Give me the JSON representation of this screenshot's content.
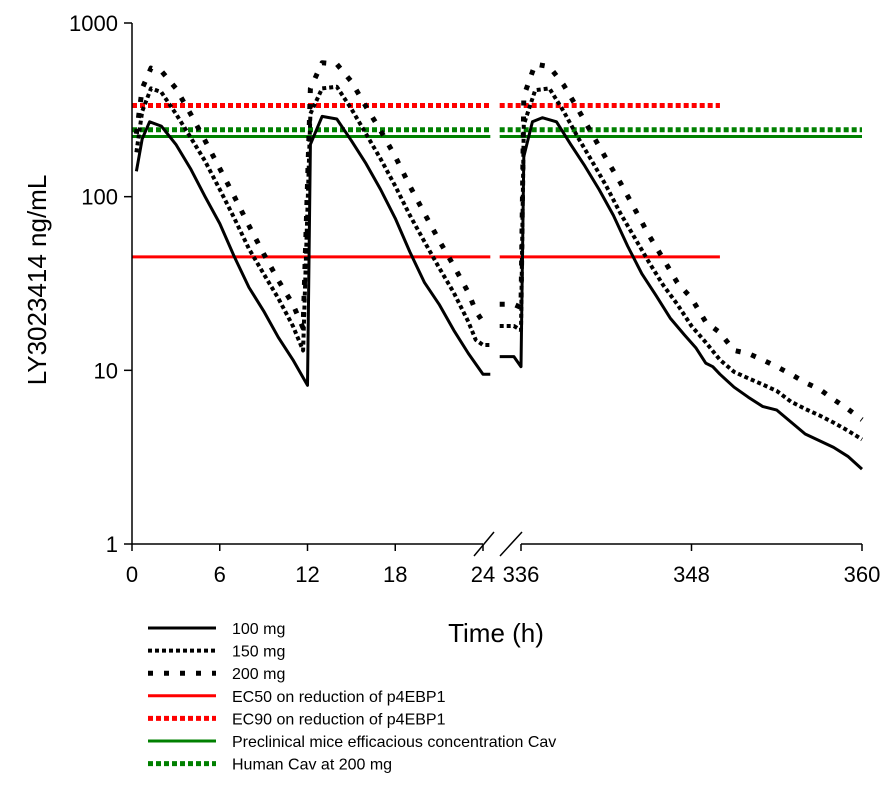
{
  "chart_data": {
    "type": "line",
    "title": "",
    "xlabel": "Time (h)",
    "ylabel": "LY3023414 ng/mL",
    "yscale": "log",
    "ylim": [
      1,
      1000
    ],
    "y_ticks": [
      {
        "value": 1,
        "label": "1"
      },
      {
        "value": 10,
        "label": "10"
      },
      {
        "value": 100,
        "label": "100"
      },
      {
        "value": 1000,
        "label": "1000"
      }
    ],
    "x_axis_broken": true,
    "x_segments": [
      {
        "range": [
          0,
          24
        ],
        "ticks": [
          {
            "value": 0,
            "label": "0"
          },
          {
            "value": 6,
            "label": "6"
          },
          {
            "value": 12,
            "label": "12"
          },
          {
            "value": 18,
            "label": "18"
          },
          {
            "value": 24,
            "label": "24"
          }
        ]
      },
      {
        "range": [
          336,
          360
        ],
        "ticks": [
          {
            "value": 336,
            "label": "336"
          },
          {
            "value": 348,
            "label": "348"
          },
          {
            "value": 360,
            "label": "360"
          }
        ]
      }
    ],
    "series": [
      {
        "name": "100 mg",
        "color": "#000000",
        "dash": "solid",
        "points": [
          [
            0.3,
            140
          ],
          [
            0.7,
            215
          ],
          [
            1.2,
            270
          ],
          [
            2,
            255
          ],
          [
            3,
            200
          ],
          [
            4,
            145
          ],
          [
            5,
            100
          ],
          [
            6,
            70
          ],
          [
            7,
            45
          ],
          [
            8,
            30
          ],
          [
            9,
            22
          ],
          [
            10,
            15.5
          ],
          [
            11,
            11.5
          ],
          [
            12,
            8.2
          ],
          [
            12.2,
            200
          ],
          [
            13,
            290
          ],
          [
            14,
            280
          ],
          [
            15,
            210
          ],
          [
            16,
            155
          ],
          [
            17,
            110
          ],
          [
            18,
            75
          ],
          [
            19,
            48
          ],
          [
            20,
            32
          ],
          [
            21,
            24
          ],
          [
            22,
            17
          ],
          [
            23,
            12.5
          ],
          [
            24,
            9.5
          ],
          [
            24.5,
            9.5
          ],
          [
            334.5,
            12
          ],
          [
            335.5,
            12
          ],
          [
            336,
            10.5
          ],
          [
            336.2,
            170
          ],
          [
            336.8,
            270
          ],
          [
            337.5,
            285
          ],
          [
            338.5,
            270
          ],
          [
            339.5,
            200
          ],
          [
            340.5,
            150
          ],
          [
            341.5,
            110
          ],
          [
            342.5,
            78
          ],
          [
            343.5,
            52
          ],
          [
            344.5,
            36
          ],
          [
            345.5,
            27
          ],
          [
            346.5,
            20
          ],
          [
            347.5,
            16
          ],
          [
            348.3,
            13.5
          ],
          [
            349,
            11
          ],
          [
            349.5,
            10.5
          ],
          [
            350,
            9.5
          ],
          [
            351,
            8
          ],
          [
            352,
            7
          ],
          [
            353,
            6.2
          ],
          [
            354,
            5.9
          ],
          [
            356,
            4.3
          ],
          [
            358,
            3.6
          ],
          [
            359,
            3.2
          ],
          [
            360,
            2.7
          ]
        ]
      },
      {
        "name": "150 mg",
        "color": "#000000",
        "dash": "dense-dot",
        "points": [
          [
            0.3,
            180
          ],
          [
            0.7,
            310
          ],
          [
            1.3,
            420
          ],
          [
            2,
            400
          ],
          [
            3,
            300
          ],
          [
            4,
            220
          ],
          [
            5,
            160
          ],
          [
            6,
            110
          ],
          [
            7,
            75
          ],
          [
            8,
            50
          ],
          [
            9,
            36
          ],
          [
            10,
            26
          ],
          [
            11,
            18
          ],
          [
            11.7,
            13
          ],
          [
            12.2,
            300
          ],
          [
            13,
            420
          ],
          [
            14,
            430
          ],
          [
            15,
            320
          ],
          [
            16,
            230
          ],
          [
            17,
            165
          ],
          [
            18,
            115
          ],
          [
            19,
            78
          ],
          [
            20,
            55
          ],
          [
            21,
            39
          ],
          [
            22,
            28
          ],
          [
            23,
            19
          ],
          [
            23.5,
            15
          ],
          [
            24,
            14
          ],
          [
            24.5,
            14
          ],
          [
            334.5,
            18
          ],
          [
            335.5,
            18
          ],
          [
            336,
            17
          ],
          [
            336.2,
            260
          ],
          [
            337,
            410
          ],
          [
            338,
            420
          ],
          [
            339,
            310
          ],
          [
            340,
            220
          ],
          [
            341,
            160
          ],
          [
            342,
            115
          ],
          [
            343,
            80
          ],
          [
            344,
            58
          ],
          [
            345,
            42
          ],
          [
            346,
            31
          ],
          [
            347,
            24
          ],
          [
            348,
            18
          ],
          [
            349,
            14.5
          ],
          [
            350,
            11.5
          ],
          [
            351,
            9.8
          ],
          [
            352,
            9
          ],
          [
            353,
            8.3
          ],
          [
            354,
            7.6
          ],
          [
            355,
            6.6
          ],
          [
            356,
            6
          ],
          [
            357,
            5.5
          ],
          [
            358,
            5
          ],
          [
            359,
            4.5
          ],
          [
            360,
            4
          ]
        ]
      },
      {
        "name": "200 mg",
        "color": "#000000",
        "dash": "sparse-dot",
        "points": [
          [
            0.3,
            230
          ],
          [
            0.7,
            420
          ],
          [
            1.3,
            550
          ],
          [
            2,
            530
          ],
          [
            3,
            420
          ],
          [
            4,
            300
          ],
          [
            5,
            210
          ],
          [
            6,
            145
          ],
          [
            7,
            100
          ],
          [
            8,
            68
          ],
          [
            9,
            47
          ],
          [
            10,
            33
          ],
          [
            11,
            24
          ],
          [
            11.7,
            17.5
          ],
          [
            12.2,
            420
          ],
          [
            13,
            590
          ],
          [
            14,
            580
          ],
          [
            15,
            460
          ],
          [
            16,
            330
          ],
          [
            17,
            240
          ],
          [
            18,
            170
          ],
          [
            19,
            115
          ],
          [
            20,
            80
          ],
          [
            21,
            56
          ],
          [
            22,
            40
          ],
          [
            23,
            28
          ],
          [
            23.5,
            22
          ],
          [
            24,
            19
          ],
          [
            24.5,
            19
          ],
          [
            334.5,
            24
          ],
          [
            335.5,
            24
          ],
          [
            336,
            23
          ],
          [
            336.2,
            380
          ],
          [
            337,
            580
          ],
          [
            338,
            560
          ],
          [
            339,
            440
          ],
          [
            340,
            320
          ],
          [
            341,
            230
          ],
          [
            342,
            165
          ],
          [
            343,
            120
          ],
          [
            344,
            85
          ],
          [
            345,
            60
          ],
          [
            346,
            44
          ],
          [
            347,
            32
          ],
          [
            348,
            26
          ],
          [
            349,
            19
          ],
          [
            350,
            16.5
          ],
          [
            351,
            13
          ],
          [
            352,
            12.5
          ],
          [
            353,
            11.5
          ],
          [
            354,
            10.5
          ],
          [
            355,
            9.5
          ],
          [
            356,
            8.5
          ],
          [
            357,
            7.8
          ],
          [
            358,
            6.8
          ],
          [
            359,
            6
          ],
          [
            360,
            5.2
          ]
        ]
      }
    ],
    "reference_lines": [
      {
        "name": "EC50 on reduction of p4EBP1",
        "color": "#ff0000",
        "dash": "solid",
        "value": 45,
        "x_ranges": [
          [
            0,
            24.5
          ],
          [
            334.5,
            350
          ]
        ]
      },
      {
        "name": "EC90 on reduction of p4EBP1",
        "color": "#ff0000",
        "dash": "dot",
        "value": 335,
        "x_ranges": [
          [
            0,
            24.5
          ],
          [
            334.5,
            350
          ]
        ]
      },
      {
        "name": "Preclinical mice efficacious concentration Cav",
        "color": "#008000",
        "dash": "solid",
        "value": 222,
        "x_ranges": [
          [
            0,
            24.5
          ],
          [
            334.5,
            360
          ]
        ]
      },
      {
        "name": "Human Cav at 200 mg",
        "color": "#008000",
        "dash": "dot",
        "value": 243,
        "x_ranges": [
          [
            0,
            24.5
          ],
          [
            334.5,
            360
          ]
        ]
      }
    ],
    "legend": {
      "placement": "bottom-left",
      "entries": [
        {
          "label": "100 mg",
          "color": "#000000",
          "dash": "solid"
        },
        {
          "label": "150 mg",
          "color": "#000000",
          "dash": "dense-dot"
        },
        {
          "label": "200 mg",
          "color": "#000000",
          "dash": "sparse-dot"
        },
        {
          "label": "EC50 on reduction of p4EBP1",
          "color": "#ff0000",
          "dash": "solid"
        },
        {
          "label": "EC90 on reduction of p4EBP1",
          "color": "#ff0000",
          "dash": "dot"
        },
        {
          "label": "Preclinical mice efficacious concentration Cav",
          "color": "#008000",
          "dash": "solid"
        },
        {
          "label": "Human Cav at 200 mg",
          "color": "#008000",
          "dash": "dot"
        }
      ]
    },
    "grid": false
  }
}
